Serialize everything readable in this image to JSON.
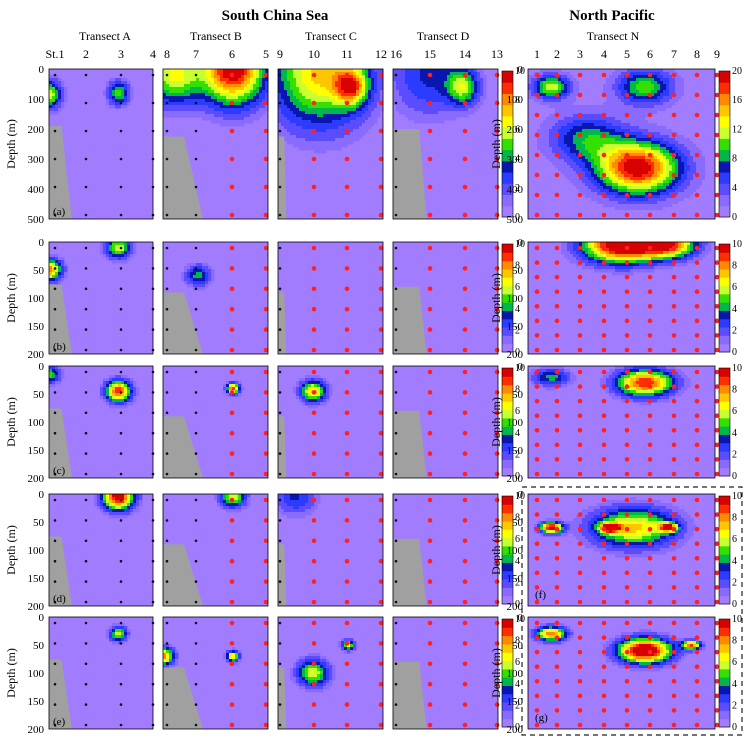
{
  "chart_data": {
    "type": "contour",
    "regions": [
      {
        "key": "scs",
        "title": "South China Sea"
      },
      {
        "key": "np",
        "title": "North Pacific"
      }
    ],
    "transects": [
      {
        "key": "A",
        "title": "Transect A",
        "stations": [
          "St.1",
          "2",
          "3",
          "4"
        ],
        "colors": [
          "black",
          "black",
          "black",
          "black"
        ]
      },
      {
        "key": "B",
        "title": "Transect B",
        "stations": [
          "8",
          "7",
          "6",
          "5"
        ],
        "colors": [
          "black",
          "black",
          "red",
          "red"
        ]
      },
      {
        "key": "C",
        "title": "Transect C",
        "stations": [
          "9",
          "10",
          "11",
          "12"
        ],
        "colors": [
          "black",
          "red",
          "red",
          "red"
        ]
      },
      {
        "key": "D",
        "title": "Transect D",
        "stations": [
          "16",
          "15",
          "14",
          "13"
        ],
        "colors": [
          "black",
          "red",
          "red",
          "red"
        ]
      },
      {
        "key": "N",
        "title": "Transect N",
        "stations": [
          "1",
          "2",
          "3",
          "4",
          "5",
          "6",
          "7",
          "8",
          "9"
        ],
        "colors": [
          "red",
          "red",
          "red",
          "red",
          "red",
          "red",
          "red",
          "red",
          "red"
        ]
      }
    ],
    "ylabel": "Depth (m)",
    "rows": [
      {
        "label": "(a)",
        "ylim": [
          0,
          500
        ],
        "yticks": [
          "0",
          "100",
          "200",
          "300",
          "400",
          "500"
        ],
        "colorbar_max": 20,
        "colorbar_ticks_scs": [
          "10",
          "8",
          "6",
          "4",
          "2",
          "0"
        ],
        "colorbar_ticks_np": [
          "20",
          "16",
          "12",
          "8",
          "4",
          "0"
        ]
      },
      {
        "label": "(b)",
        "ylim": [
          0,
          200
        ],
        "yticks": [
          "0",
          "50",
          "100",
          "150",
          "200"
        ],
        "colorbar_max": 10,
        "colorbar_ticks_scs": [
          "10",
          "8",
          "6",
          "4",
          "2",
          "0"
        ],
        "colorbar_ticks_np": [
          "10",
          "8",
          "6",
          "4",
          "2",
          "0"
        ]
      },
      {
        "label": "(c)",
        "ylim": [
          0,
          200
        ],
        "yticks": [
          "0",
          "50",
          "100",
          "150",
          "200"
        ],
        "colorbar_max": 10,
        "colorbar_ticks_scs": [
          "10",
          "8",
          "6",
          "4",
          "2",
          "0"
        ],
        "colorbar_ticks_np": [
          "10",
          "8",
          "6",
          "4",
          "2",
          "0"
        ]
      },
      {
        "label": "(d)",
        "label_np": "(f)",
        "ylim": [
          0,
          200
        ],
        "yticks": [
          "0",
          "50",
          "100",
          "150",
          "200"
        ],
        "colorbar_max": 10,
        "colorbar_ticks_scs": [
          "10",
          "8",
          "6",
          "4",
          "2",
          "0"
        ],
        "colorbar_ticks_np": [
          "10",
          "8",
          "6",
          "4",
          "2",
          "0"
        ]
      },
      {
        "label": "(e)",
        "label_np": "(g)",
        "ylim": [
          0,
          200
        ],
        "yticks": [
          "0",
          "50",
          "100",
          "150",
          "200"
        ],
        "colorbar_max": 10,
        "colorbar_ticks_scs": [
          "10",
          "8",
          "6",
          "4",
          "2",
          "0"
        ],
        "colorbar_ticks_np": [
          "10",
          "8",
          "6",
          "4",
          "2",
          "0"
        ]
      }
    ],
    "hotspots": [
      [
        {
          "t": "A",
          "s": 0.0,
          "d": 85,
          "v": 6,
          "r": 0.12
        },
        {
          "t": "A",
          "s": 2.0,
          "d": 80,
          "v": 5,
          "r": 0.1
        },
        {
          "t": "B",
          "s": 2.0,
          "d": 0,
          "v": 10,
          "r": 0.3
        },
        {
          "t": "B",
          "s": 0.3,
          "d": 20,
          "v": 6,
          "r": 0.25
        },
        {
          "t": "C",
          "s": 1.2,
          "d": 10,
          "v": 7,
          "r": 0.45
        },
        {
          "t": "C",
          "s": 2.1,
          "d": 60,
          "v": 6,
          "r": 0.15
        },
        {
          "t": "D",
          "s": 2.0,
          "d": 60,
          "v": 5,
          "r": 0.15
        },
        {
          "t": "D",
          "s": 1.0,
          "d": 20,
          "v": 3,
          "r": 0.35
        },
        {
          "t": "N",
          "s": 4.7,
          "d": 330,
          "v": 20,
          "r": 0.22
        },
        {
          "t": "N",
          "s": 1.0,
          "d": 60,
          "v": 12,
          "r": 0.1
        },
        {
          "t": "N",
          "s": 5.0,
          "d": 60,
          "v": 10,
          "r": 0.15
        },
        {
          "t": "N",
          "s": 2.5,
          "d": 230,
          "v": 8,
          "r": 0.2
        }
      ],
      [
        {
          "t": "A",
          "s": 0.0,
          "d": 50,
          "v": 8,
          "r": 0.12
        },
        {
          "t": "A",
          "s": 2.0,
          "d": 10,
          "v": 6,
          "r": 0.12
        },
        {
          "t": "B",
          "s": 1.0,
          "d": 60,
          "v": 4,
          "r": 0.12
        },
        {
          "t": "N",
          "s": 4.0,
          "d": 5,
          "v": 11,
          "r": 0.2
        },
        {
          "t": "N",
          "s": 6.0,
          "d": 5,
          "v": 8,
          "r": 0.15
        }
      ],
      [
        {
          "t": "A",
          "s": 2.0,
          "d": 45,
          "v": 9,
          "r": 0.12
        },
        {
          "t": "A",
          "s": 0.0,
          "d": 15,
          "v": 5,
          "r": 0.1
        },
        {
          "t": "B",
          "s": 2.0,
          "d": 40,
          "v": 9,
          "r": 0.06
        },
        {
          "t": "C",
          "s": 1.0,
          "d": 45,
          "v": 7,
          "r": 0.12
        },
        {
          "t": "N",
          "s": 5.0,
          "d": 30,
          "v": 9,
          "r": 0.15
        },
        {
          "t": "N",
          "s": 1.0,
          "d": 20,
          "v": 4,
          "r": 0.1
        }
      ],
      [
        {
          "t": "A",
          "s": 2.0,
          "d": 5,
          "v": 10,
          "r": 0.15
        },
        {
          "t": "B",
          "s": 2.0,
          "d": 5,
          "v": 6,
          "r": 0.12
        },
        {
          "t": "C",
          "s": 0.5,
          "d": 5,
          "v": 3,
          "r": 0.2
        },
        {
          "t": "N",
          "s": 1.0,
          "d": 60,
          "v": 10,
          "r": 0.06
        },
        {
          "t": "N",
          "s": 4.5,
          "d": 60,
          "v": 7,
          "r": 0.22
        },
        {
          "t": "N",
          "s": 3.5,
          "d": 60,
          "v": 9,
          "r": 0.05
        },
        {
          "t": "N",
          "s": 6.0,
          "d": 60,
          "v": 8,
          "r": 0.05
        }
      ],
      [
        {
          "t": "A",
          "s": 2.0,
          "d": 30,
          "v": 6,
          "r": 0.08
        },
        {
          "t": "B",
          "s": 0.0,
          "d": 70,
          "v": 8,
          "r": 0.1
        },
        {
          "t": "B",
          "s": 2.0,
          "d": 70,
          "v": 7,
          "r": 0.06
        },
        {
          "t": "C",
          "s": 1.0,
          "d": 100,
          "v": 6,
          "r": 0.15
        },
        {
          "t": "C",
          "s": 2.0,
          "d": 50,
          "v": 6,
          "r": 0.06
        },
        {
          "t": "N",
          "s": 5.0,
          "d": 60,
          "v": 11,
          "r": 0.14
        },
        {
          "t": "N",
          "s": 1.0,
          "d": 30,
          "v": 8,
          "r": 0.08
        },
        {
          "t": "N",
          "s": 7.0,
          "d": 50,
          "v": 8,
          "r": 0.05
        }
      ]
    ]
  }
}
